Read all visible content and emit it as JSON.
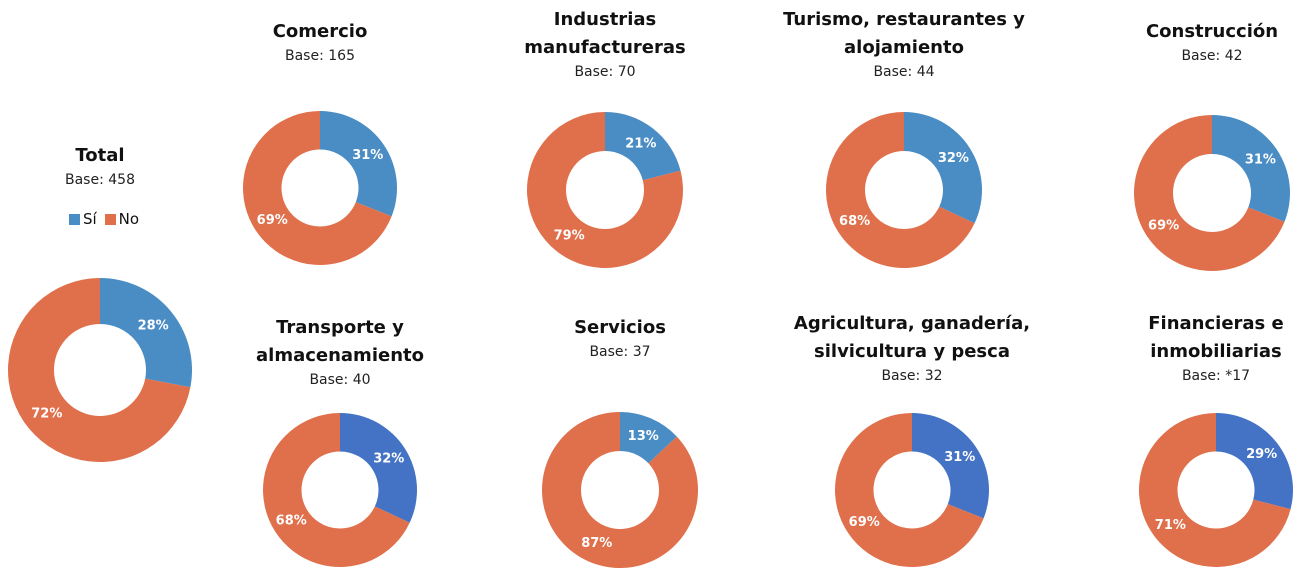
{
  "chart_data": [
    {
      "type": "pie",
      "title": "Total",
      "subtitle": "Base: 458",
      "categories": [
        "Sí",
        "No"
      ],
      "values": [
        28,
        72
      ],
      "value_labels": [
        "28%",
        "72%"
      ],
      "colors": [
        "#4a8cc4",
        "#e0704b"
      ],
      "legend": true
    },
    {
      "type": "pie",
      "title": "Comercio",
      "subtitle": "Base: 165",
      "categories": [
        "Sí",
        "No"
      ],
      "values": [
        31,
        69
      ],
      "value_labels": [
        "31%",
        "69%"
      ],
      "colors": [
        "#4a8cc4",
        "#e0704b"
      ]
    },
    {
      "type": "pie",
      "title": "Industrias manufactureras",
      "subtitle": "Base: 70",
      "categories": [
        "Sí",
        "No"
      ],
      "values": [
        21,
        79
      ],
      "value_labels": [
        "21%",
        "79%"
      ],
      "colors": [
        "#4a8cc4",
        "#e0704b"
      ]
    },
    {
      "type": "pie",
      "title": "Turismo, restaurantes y alojamiento",
      "subtitle": "Base: 44",
      "categories": [
        "Sí",
        "No"
      ],
      "values": [
        32,
        68
      ],
      "value_labels": [
        "32%",
        "68%"
      ],
      "colors": [
        "#4a8cc4",
        "#e0704b"
      ]
    },
    {
      "type": "pie",
      "title": "Construcción",
      "subtitle": "Base: 42",
      "categories": [
        "Sí",
        "No"
      ],
      "values": [
        31,
        69
      ],
      "value_labels": [
        "31%",
        "69%"
      ],
      "colors": [
        "#4a8cc4",
        "#e0704b"
      ]
    },
    {
      "type": "pie",
      "title": "Transporte y almacenamiento",
      "subtitle": "Base: 40",
      "categories": [
        "Sí",
        "No"
      ],
      "values": [
        32,
        68
      ],
      "value_labels": [
        "32%",
        "68%"
      ],
      "colors": [
        "#4472c4",
        "#e0704b"
      ]
    },
    {
      "type": "pie",
      "title": "Servicios",
      "subtitle": "Base: 37",
      "categories": [
        "Sí",
        "No"
      ],
      "values": [
        13,
        87
      ],
      "value_labels": [
        "13%",
        "87%"
      ],
      "colors": [
        "#4a8cc4",
        "#e0704b"
      ]
    },
    {
      "type": "pie",
      "title": "Agricultura, ganadería, silvicultura y pesca",
      "subtitle": "Base: 32",
      "categories": [
        "Sí",
        "No"
      ],
      "values": [
        31,
        69
      ],
      "value_labels": [
        "31%",
        "69%"
      ],
      "colors": [
        "#4472c4",
        "#e0704b"
      ]
    },
    {
      "type": "pie",
      "title": "Financieras e inmobiliarias",
      "subtitle": "Base: *17",
      "categories": [
        "Sí",
        "No"
      ],
      "values": [
        29,
        71
      ],
      "value_labels": [
        "29%",
        "71%"
      ],
      "colors": [
        "#4472c4",
        "#e0704b"
      ]
    }
  ]
}
